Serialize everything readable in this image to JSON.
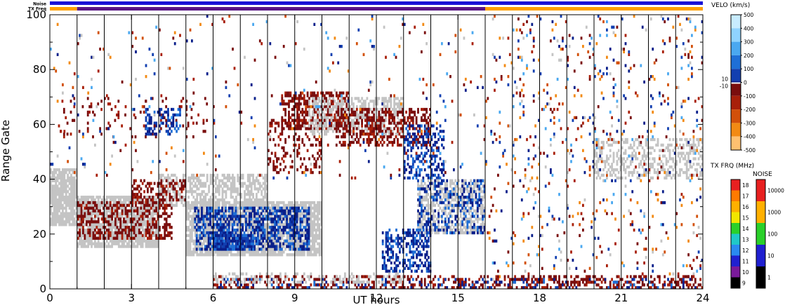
{
  "chart_data": {
    "type": "heatmap",
    "xlabel": "UT hours",
    "ylabel": "Range Gate",
    "xlim": [
      0,
      24
    ],
    "ylim": [
      0,
      100
    ],
    "xticks": [
      "0",
      "3",
      "6",
      "9",
      "12",
      "15",
      "18",
      "21",
      "24"
    ],
    "yticks": [
      "0",
      "20",
      "40",
      "60",
      "80",
      "100"
    ],
    "grid": "vertical hourly lines",
    "status_bars": {
      "noise_label": "Noise",
      "txfreq_label": "TX Freq",
      "noise_color": "#1a12d6",
      "txfreq_segments": [
        {
          "start": 0,
          "end": 1,
          "color": "#ffa000"
        },
        {
          "start": 1,
          "end": 16,
          "color": "#5a1585"
        },
        {
          "start": 16,
          "end": 24,
          "color": "#ffa000"
        }
      ]
    },
    "velocity_scale": {
      "title": "VELO (km/s)",
      "labels": [
        "500",
        "400",
        "300",
        "200",
        "100",
        "10",
        "0",
        "-10",
        "-100",
        "-200",
        "-300",
        "-400",
        "-500"
      ],
      "colors": [
        "#c8ecff",
        "#8fd3ff",
        "#4aa8f0",
        "#1f6fd6",
        "#123fb0",
        "#0a1f8a",
        "#ffffff",
        "#7a0e0e",
        "#a8200a",
        "#d2500a",
        "#f28a14",
        "#ffc070"
      ],
      "ground_scatter_color": "#c4c4c4"
    },
    "txfreq_scale": {
      "title": "TX FRQ (MHz)",
      "labels": [
        "18",
        "17",
        "16",
        "15",
        "14",
        "13",
        "12",
        "11",
        "10",
        "9"
      ],
      "colors": [
        "#e82020",
        "#ff7a00",
        "#ffb000",
        "#f2e600",
        "#2ad02a",
        "#20c8c8",
        "#2a8af0",
        "#2020d0",
        "#7a1a9a",
        "#000000"
      ]
    },
    "noise_scale": {
      "title": "NOISE",
      "labels": [
        "10000",
        "1000",
        "100",
        "10",
        "1"
      ],
      "colors": [
        "#e82020",
        "#ffb000",
        "#2ad02a",
        "#2020d0",
        "#000000"
      ]
    },
    "regions": [
      {
        "kind": "ground",
        "t0": 0.0,
        "t1": 1.0,
        "g0": 23,
        "g1": 44,
        "density": 0.85
      },
      {
        "kind": "ground",
        "t0": 1.0,
        "t1": 4.0,
        "g0": 15,
        "g1": 34,
        "density": 0.85
      },
      {
        "kind": "ground",
        "t0": 4.0,
        "t1": 8.0,
        "g0": 30,
        "g1": 42,
        "density": 0.55
      },
      {
        "kind": "neg",
        "t0": 1.0,
        "t1": 4.5,
        "g0": 18,
        "g1": 32,
        "density": 0.45
      },
      {
        "kind": "neg",
        "t0": 3.0,
        "t1": 5.0,
        "g0": 32,
        "g1": 40,
        "density": 0.4
      },
      {
        "kind": "ground",
        "t0": 5.0,
        "t1": 10.0,
        "g0": 12,
        "g1": 32,
        "density": 0.8
      },
      {
        "kind": "pos",
        "t0": 5.3,
        "t1": 9.5,
        "g0": 14,
        "g1": 30,
        "density": 0.55
      },
      {
        "kind": "pos",
        "t0": 6.0,
        "t1": 7.5,
        "g0": 14,
        "g1": 20,
        "density": 0.8
      },
      {
        "kind": "neg",
        "t0": 8.0,
        "t1": 10.0,
        "g0": 42,
        "g1": 62,
        "density": 0.25
      },
      {
        "kind": "neg",
        "t0": 8.5,
        "t1": 11.0,
        "g0": 58,
        "g1": 72,
        "density": 0.55
      },
      {
        "kind": "ground",
        "t0": 9.5,
        "t1": 13.0,
        "g0": 56,
        "g1": 70,
        "density": 0.5
      },
      {
        "kind": "neg",
        "t0": 10.5,
        "t1": 14.0,
        "g0": 52,
        "g1": 66,
        "density": 0.45
      },
      {
        "kind": "pos",
        "t0": 13.0,
        "t1": 14.5,
        "g0": 40,
        "g1": 60,
        "density": 0.35
      },
      {
        "kind": "ground",
        "t0": 13.5,
        "t1": 16.0,
        "g0": 20,
        "g1": 40,
        "density": 0.55
      },
      {
        "kind": "pos",
        "t0": 13.5,
        "t1": 16.0,
        "g0": 20,
        "g1": 40,
        "density": 0.3
      },
      {
        "kind": "pos",
        "t0": 12.2,
        "t1": 14.0,
        "g0": 6,
        "g1": 22,
        "density": 0.45
      },
      {
        "kind": "neg",
        "t0": 0.3,
        "t1": 6.0,
        "g0": 55,
        "g1": 70,
        "density": 0.08
      },
      {
        "kind": "pos",
        "t0": 3.5,
        "t1": 4.8,
        "g0": 56,
        "g1": 66,
        "density": 0.4
      },
      {
        "kind": "ground",
        "t0": 20.0,
        "t1": 24.0,
        "g0": 40,
        "g1": 55,
        "density": 0.35
      },
      {
        "kind": "mix",
        "t0": 16.0,
        "t1": 24.0,
        "g0": 0,
        "g1": 100,
        "density": 0.05
      },
      {
        "kind": "mix",
        "t0": 0.0,
        "t1": 16.0,
        "g0": 40,
        "g1": 100,
        "density": 0.02
      },
      {
        "kind": "neg",
        "t0": 6.0,
        "t1": 24.0,
        "g0": 0,
        "g1": 5,
        "density": 0.35
      },
      {
        "kind": "pos",
        "t0": 6.0,
        "t1": 24.0,
        "g0": 0,
        "g1": 4,
        "density": 0.12
      },
      {
        "kind": "ground",
        "t0": 6.0,
        "t1": 13.0,
        "g0": 2,
        "g1": 6,
        "density": 0.3
      }
    ]
  }
}
